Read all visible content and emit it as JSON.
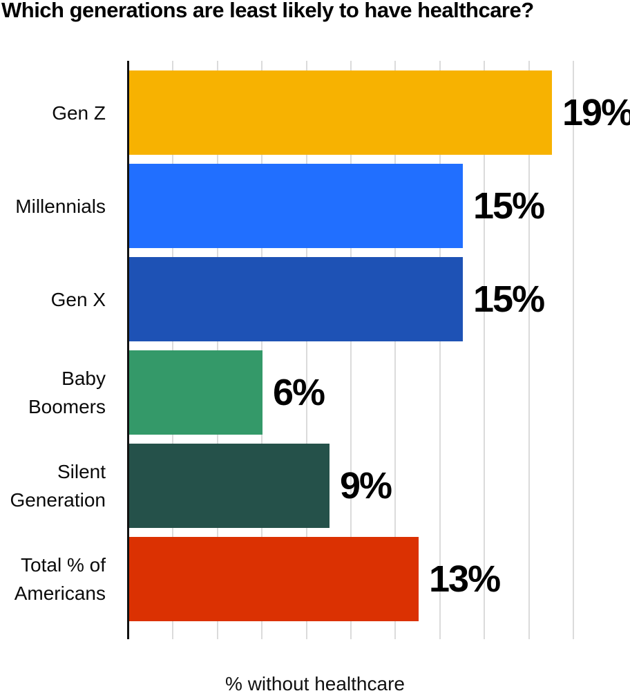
{
  "title": "Which generations are least likely to have healthcare?",
  "chart_data": {
    "type": "bar",
    "orientation": "horizontal",
    "title": "Which generations are least likely to have healthcare?",
    "xlabel": "% without healthcare",
    "ylabel": "",
    "categories": [
      "Gen Z",
      "Millennials",
      "Gen X",
      "Baby Boomers",
      "Silent Generation",
      "Total % of Americans"
    ],
    "category_label_lines": [
      [
        "Gen Z"
      ],
      [
        "Millennials"
      ],
      [
        "Gen X"
      ],
      [
        "Baby",
        "Boomers"
      ],
      [
        "Silent",
        "Generation"
      ],
      [
        "Total % of",
        "Americans"
      ]
    ],
    "values": [
      19,
      15,
      15,
      6,
      9,
      13
    ],
    "value_labels": [
      "19%",
      "15%",
      "15%",
      "6%",
      "9%",
      "13%"
    ],
    "bar_colors": [
      "#F7B201",
      "#216FFF",
      "#1E52B5",
      "#349969",
      "#25514A",
      "#DB3102"
    ],
    "xlim": [
      0,
      22.6
    ],
    "grid": "vertical",
    "gridlines_at": [
      2,
      4,
      6,
      8,
      10,
      12,
      14,
      16,
      18,
      20
    ],
    "legend": "none"
  },
  "colors": {
    "axis": "#111111",
    "gridline": "#dbdbdb",
    "text": "#000000",
    "background": "#ffffff"
  }
}
